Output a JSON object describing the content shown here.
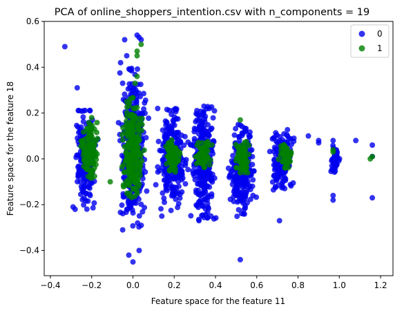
{
  "chart_data": {
    "type": "scatter",
    "title": "PCA of online_shoppers_intention.csv with n_components = 19",
    "xlabel": "Feature space for the feature 11",
    "ylabel": "Feature space for the feature 18",
    "xlim": [
      -0.43,
      1.26
    ],
    "ylim": [
      -0.51,
      0.6
    ],
    "xticks": [
      -0.4,
      -0.2,
      0.0,
      0.2,
      0.4,
      0.6,
      0.8,
      1.0,
      1.2
    ],
    "yticks": [
      -0.4,
      -0.2,
      0.0,
      0.2,
      0.4,
      0.6
    ],
    "xtick_labels": [
      "−0.4",
      "−0.2",
      "0.0",
      "0.2",
      "0.4",
      "0.6",
      "0.8",
      "1.0",
      "1.2"
    ],
    "ytick_labels": [
      "−0.4",
      "−0.2",
      "0.0",
      "0.2",
      "0.4",
      "0.6"
    ],
    "grid": false,
    "legend_position": "top-right",
    "series": [
      {
        "name": "0",
        "color": "#0000ee",
        "clusters": [
          {
            "x": -0.23,
            "x_spread": 0.045,
            "y_min": -0.22,
            "y_max": 0.22
          },
          {
            "x": 0.0,
            "x_spread": 0.06,
            "y_min": -0.3,
            "y_max": 0.4
          },
          {
            "x": 0.19,
            "x_spread": 0.06,
            "y_min": -0.23,
            "y_max": 0.22
          },
          {
            "x": 0.34,
            "x_spread": 0.06,
            "y_min": -0.27,
            "y_max": 0.23
          },
          {
            "x": 0.53,
            "x_spread": 0.06,
            "y_min": -0.26,
            "y_max": 0.15
          },
          {
            "x": 0.72,
            "x_spread": 0.05,
            "y_min": -0.15,
            "y_max": 0.13
          },
          {
            "x": 0.98,
            "x_spread": 0.02,
            "y_min": -0.06,
            "y_max": 0.06
          }
        ],
        "points": [
          {
            "x": -0.33,
            "y": 0.49
          },
          {
            "x": -0.27,
            "y": 0.31
          },
          {
            "x": -0.29,
            "y": -0.21
          },
          {
            "x": -0.28,
            "y": -0.22
          },
          {
            "x": -0.04,
            "y": 0.52
          },
          {
            "x": 0.02,
            "y": 0.54
          },
          {
            "x": 0.03,
            "y": 0.53
          },
          {
            "x": -0.03,
            "y": 0.45
          },
          {
            "x": -0.06,
            "y": 0.42
          },
          {
            "x": -0.05,
            "y": 0.33
          },
          {
            "x": 0.04,
            "y": 0.52
          },
          {
            "x": -0.02,
            "y": -0.42
          },
          {
            "x": 0.0,
            "y": -0.45
          },
          {
            "x": 0.03,
            "y": -0.4
          },
          {
            "x": -0.05,
            "y": -0.31
          },
          {
            "x": 0.12,
            "y": 0.22
          },
          {
            "x": 0.14,
            "y": -0.25
          },
          {
            "x": 0.37,
            "y": 0.22
          },
          {
            "x": 0.32,
            "y": -0.27
          },
          {
            "x": 0.52,
            "y": -0.44
          },
          {
            "x": 0.51,
            "y": 0.15
          },
          {
            "x": 0.71,
            "y": -0.27
          },
          {
            "x": 0.85,
            "y": 0.1
          },
          {
            "x": 0.78,
            "y": 0.09
          },
          {
            "x": 0.9,
            "y": 0.08
          },
          {
            "x": 0.9,
            "y": 0.07
          },
          {
            "x": 0.97,
            "y": -0.16
          },
          {
            "x": 0.97,
            "y": -0.18
          },
          {
            "x": 0.97,
            "y": 0.08
          },
          {
            "x": 1.08,
            "y": 0.08
          },
          {
            "x": 1.16,
            "y": 0.06
          },
          {
            "x": 1.16,
            "y": 0.01
          },
          {
            "x": 1.16,
            "y": -0.17
          }
        ]
      },
      {
        "name": "1",
        "color": "#008000",
        "clusters": [
          {
            "x": -0.21,
            "x_spread": 0.04,
            "y_min": -0.09,
            "y_max": 0.16
          },
          {
            "x": 0.0,
            "x_spread": 0.05,
            "y_min": -0.18,
            "y_max": 0.28
          },
          {
            "x": 0.19,
            "x_spread": 0.035,
            "y_min": -0.06,
            "y_max": 0.09
          },
          {
            "x": 0.34,
            "x_spread": 0.035,
            "y_min": -0.05,
            "y_max": 0.08
          },
          {
            "x": 0.53,
            "x_spread": 0.03,
            "y_min": -0.07,
            "y_max": 0.09
          },
          {
            "x": 0.74,
            "x_spread": 0.03,
            "y_min": -0.04,
            "y_max": 0.07
          }
        ],
        "points": [
          {
            "x": 0.04,
            "y": 0.5
          },
          {
            "x": 0.02,
            "y": 0.47
          },
          {
            "x": 0.02,
            "y": 0.45
          },
          {
            "x": 0.02,
            "y": 0.36
          },
          {
            "x": 0.01,
            "y": 0.33
          },
          {
            "x": -0.03,
            "y": 0.25
          },
          {
            "x": -0.11,
            "y": -0.1
          },
          {
            "x": -0.2,
            "y": 0.18
          },
          {
            "x": 0.52,
            "y": 0.17
          },
          {
            "x": 0.74,
            "y": -0.04
          },
          {
            "x": 0.97,
            "y": 0.04
          },
          {
            "x": 0.97,
            "y": 0.03
          },
          {
            "x": 1.15,
            "y": 0.0
          },
          {
            "x": 1.16,
            "y": 0.01
          }
        ]
      }
    ]
  }
}
